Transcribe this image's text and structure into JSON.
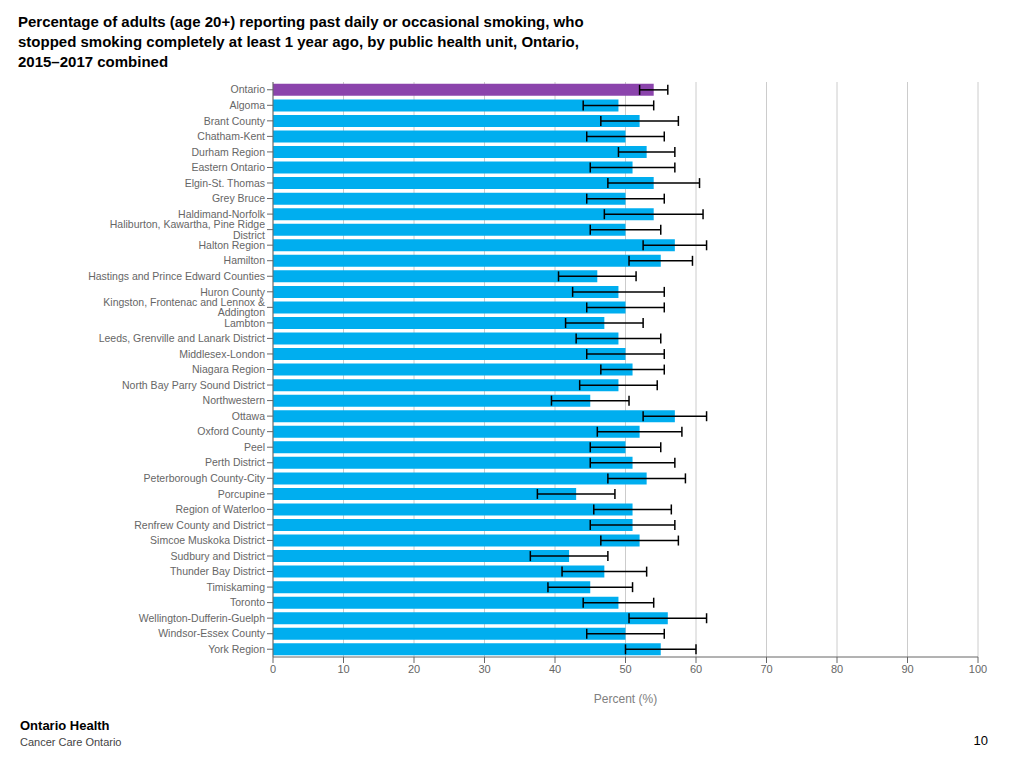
{
  "chart_data": {
    "type": "bar",
    "orientation": "horizontal",
    "title": "Percentage of adults (age 20+) reporting past daily or occasional smoking, who\nstopped smoking completely at least 1 year ago, by public health unit, Ontario,\n2015–2017 combined",
    "xlabel": "Percent (%)",
    "categories": [
      "Ontario",
      "Algoma",
      "Brant County",
      "Chatham-Kent",
      "Durham Region",
      "Eastern Ontario",
      "Elgin-St. Thomas",
      "Grey Bruce",
      "Haldimand-Norfolk",
      "Haliburton, Kawartha, Pine Ridge District",
      "Halton Region",
      "Hamilton",
      "Hastings and Prince Edward Counties",
      "Huron County",
      "Kingston, Frontenac and Lennox & Addington",
      "Lambton",
      "Leeds, Grenville and Lanark District",
      "Middlesex-London",
      "Niagara Region",
      "North Bay Parry Sound District",
      "Northwestern",
      "Ottawa",
      "Oxford County",
      "Peel",
      "Perth District",
      "Peterborough County-City",
      "Porcupine",
      "Region of Waterloo",
      "Renfrew County and District",
      "Simcoe Muskoka District",
      "Sudbury and District",
      "Thunder Bay District",
      "Timiskaming",
      "Toronto",
      "Wellington-Dufferin-Guelph",
      "Windsor-Essex County",
      "York Region"
    ],
    "values": [
      54.0,
      49.0,
      52.0,
      50.0,
      53.0,
      51.0,
      54.0,
      50.0,
      54.0,
      50.0,
      57.0,
      55.0,
      46.0,
      49.0,
      50.0,
      47.0,
      49.0,
      50.0,
      51.0,
      49.0,
      45.0,
      57.0,
      52.0,
      50.0,
      51.0,
      53.0,
      43.0,
      51.0,
      51.0,
      52.0,
      42.0,
      47.0,
      45.0,
      49.0,
      56.0,
      50.0,
      55.0
    ],
    "errors": [
      2.0,
      5.0,
      5.5,
      5.5,
      4.0,
      6.0,
      6.5,
      5.5,
      7.0,
      5.0,
      4.5,
      4.5,
      5.5,
      6.5,
      5.5,
      5.5,
      6.0,
      5.5,
      4.5,
      5.5,
      5.5,
      4.5,
      6.0,
      5.0,
      6.0,
      5.5,
      5.5,
      5.5,
      6.0,
      5.5,
      5.5,
      6.0,
      6.0,
      5.0,
      5.5,
      5.5,
      5.0
    ],
    "colors": [
      "#8B44AC",
      "#00AEEF",
      "#00AEEF",
      "#00AEEF",
      "#00AEEF",
      "#00AEEF",
      "#00AEEF",
      "#00AEEF",
      "#00AEEF",
      "#00AEEF",
      "#00AEEF",
      "#00AEEF",
      "#00AEEF",
      "#00AEEF",
      "#00AEEF",
      "#00AEEF",
      "#00AEEF",
      "#00AEEF",
      "#00AEEF",
      "#00AEEF",
      "#00AEEF",
      "#00AEEF",
      "#00AEEF",
      "#00AEEF",
      "#00AEEF",
      "#00AEEF",
      "#00AEEF",
      "#00AEEF",
      "#00AEEF",
      "#00AEEF",
      "#00AEEF",
      "#00AEEF",
      "#00AEEF",
      "#00AEEF",
      "#00AEEF",
      "#00AEEF",
      "#00AEEF"
    ],
    "xlim": [
      0,
      100
    ],
    "xticks": [
      0,
      10,
      20,
      30,
      40,
      50,
      60,
      70,
      80,
      90,
      100
    ],
    "grid": true,
    "annotations": [
      "Ontario Health",
      "Cancer Care Ontario",
      "10"
    ]
  }
}
